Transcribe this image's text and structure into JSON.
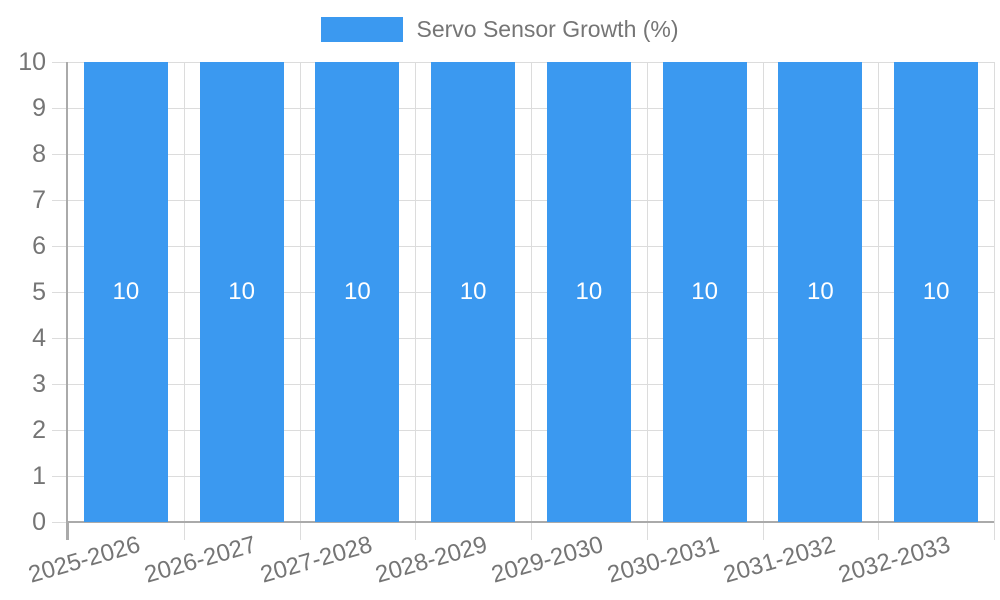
{
  "legend": {
    "label": "Servo Sensor Growth (%)"
  },
  "chart_data": {
    "type": "bar",
    "title": "",
    "xlabel": "",
    "ylabel": "",
    "categories": [
      "2025-2026",
      "2026-2027",
      "2027-2028",
      "2028-2029",
      "2029-2030",
      "2030-2031",
      "2031-2032",
      "2032-2033"
    ],
    "series": [
      {
        "name": "Servo Sensor Growth (%)",
        "values": [
          10,
          10,
          10,
          10,
          10,
          10,
          10,
          10
        ]
      }
    ],
    "bar_labels": [
      "10",
      "10",
      "10",
      "10",
      "10",
      "10",
      "10",
      "10"
    ],
    "ylim": [
      0,
      10
    ],
    "yticks": [
      0,
      1,
      2,
      3,
      4,
      5,
      6,
      7,
      8,
      9,
      10
    ],
    "grid": true,
    "legend_position": "top",
    "colors": {
      "bar": "#3b99f0",
      "grid_line": "#dcdcdc",
      "axis_line": "#aaaaaa",
      "axis_text": "#757575",
      "bar_label_text": "#ffffff"
    }
  }
}
